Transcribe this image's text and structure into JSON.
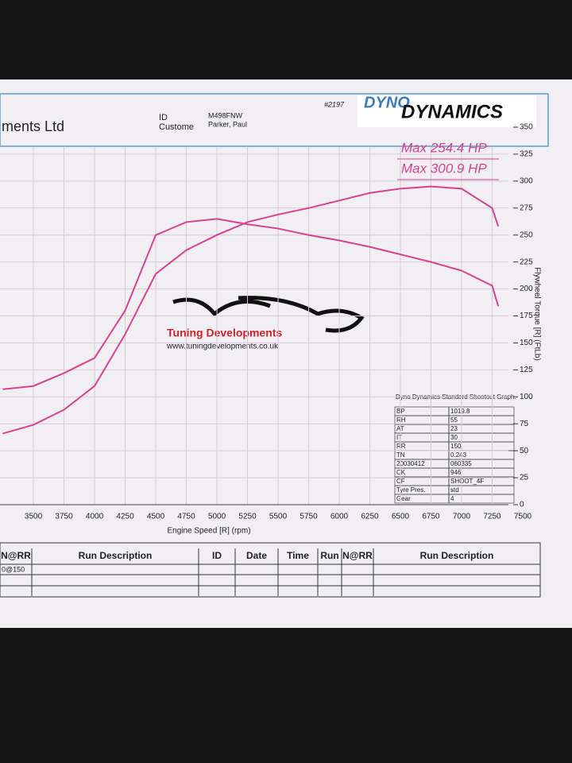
{
  "chart_data": {
    "type": "line",
    "x_label": "Engine Speed [R] (rpm)",
    "y_label": "Flywheel Torque [R] (FtLb)",
    "annotations": [
      "Max 254.4 HP",
      "Max 300.9 HP"
    ],
    "x": [
      3250,
      3500,
      3750,
      4000,
      4250,
      4500,
      4750,
      5000,
      5250,
      5500,
      5750,
      6000,
      6250,
      6500,
      6750,
      7000,
      7250,
      7300
    ],
    "series": [
      {
        "color": "#d8418f",
        "values": [
          66,
          74,
          88,
          110,
          158,
          214,
          236,
          250,
          262,
          269,
          275,
          282,
          289,
          293,
          295,
          293,
          275,
          258
        ]
      },
      {
        "color": "#d8418f",
        "values": [
          107,
          110,
          122,
          136,
          180,
          250,
          262,
          265,
          260,
          256,
          250,
          245,
          239,
          232,
          225,
          217,
          203,
          184
        ]
      }
    ],
    "xlim": [
      3227,
      7500
    ],
    "xticks": [
      3500,
      3750,
      4000,
      4250,
      4500,
      4750,
      5000,
      5250,
      5500,
      5750,
      6000,
      6250,
      6500,
      6750,
      7000,
      7250,
      7500
    ],
    "ylim": [
      0,
      350
    ],
    "yticks": [
      0,
      25,
      50,
      75,
      100,
      125,
      150,
      175,
      200,
      225,
      250,
      275,
      300,
      325,
      350
    ],
    "grid": true
  },
  "header": {
    "company": "ments Ltd",
    "id_label": "ID",
    "customer_label": "Custome",
    "id": "M498FNW",
    "customer": "Parker, Paul",
    "number": "#2197",
    "logo_top": "DYNO",
    "logo_bottom": "DYNAMICS"
  },
  "watermark": {
    "name": "Tuning Developments",
    "url": "www.tuningdevelopments.co.uk"
  },
  "params": {
    "title": "Dyno Dynamics Standard Shootout Graph.",
    "rows": [
      [
        "BP",
        "1019.8"
      ],
      [
        "RH",
        "55"
      ],
      [
        "AT",
        "23"
      ],
      [
        "IT",
        "30"
      ],
      [
        "RR",
        "150"
      ],
      [
        "TN",
        "0.243"
      ],
      [
        "20030412",
        "060335"
      ],
      [
        "CK",
        "946"
      ],
      [
        "CF",
        "SHOOT_4F"
      ],
      [
        "Tyre Pres.",
        "std"
      ],
      [
        "Gear",
        "4"
      ]
    ]
  },
  "runs": {
    "headers": [
      "N@RR",
      "Run Description",
      "ID",
      "Date",
      "Time",
      "Run",
      "N@RR",
      "Run Description"
    ],
    "row": [
      "0@150"
    ]
  }
}
